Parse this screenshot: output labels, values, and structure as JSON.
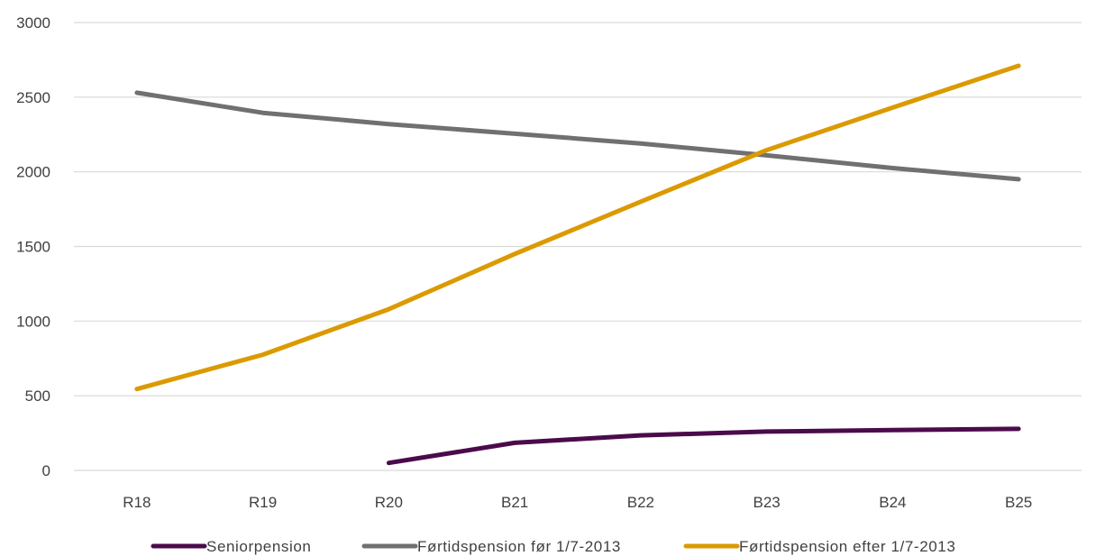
{
  "chart_data": {
    "type": "line",
    "title": "",
    "xlabel": "",
    "ylabel": "",
    "categories": [
      "R18",
      "R19",
      "R20",
      "B21",
      "B22",
      "B23",
      "B24",
      "B25"
    ],
    "ylim": [
      0,
      3000
    ],
    "yticks": [
      0,
      500,
      1000,
      1500,
      2000,
      2500,
      3000
    ],
    "grid": true,
    "legend_position": "bottom",
    "series": [
      {
        "name": "Seniorpension",
        "color": "#4b0b4b",
        "values": [
          null,
          null,
          50,
          185,
          235,
          260,
          270,
          278
        ]
      },
      {
        "name": "Førtidspension før 1/7-2013",
        "color": "#707070",
        "values": [
          2530,
          2395,
          2320,
          2255,
          2190,
          2110,
          2025,
          1950
        ]
      },
      {
        "name": "Førtidspension efter 1/7-2013",
        "color": "#db9a00",
        "values": [
          545,
          775,
          1080,
          1450,
          1800,
          2145,
          2430,
          2710
        ]
      }
    ]
  }
}
